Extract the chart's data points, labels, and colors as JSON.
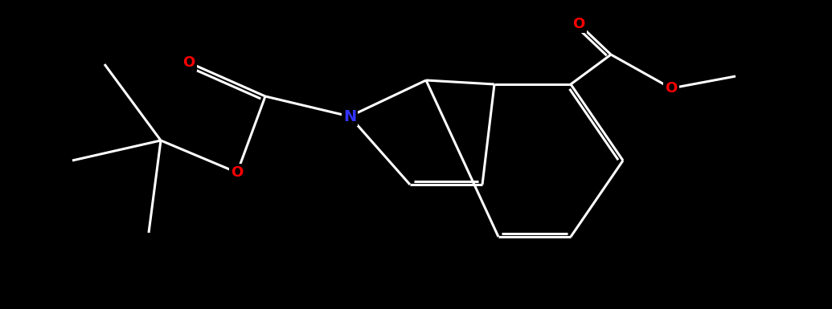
{
  "background_color": "#000000",
  "bond_color": "#ffffff",
  "N_color": "#0000ff",
  "O_color": "#ff0000",
  "lw": 2.2,
  "font_size": 14,
  "atoms": {
    "N": {
      "label": "N",
      "color": "#3333ff"
    },
    "O": {
      "label": "O",
      "color": "#ff0000"
    }
  }
}
